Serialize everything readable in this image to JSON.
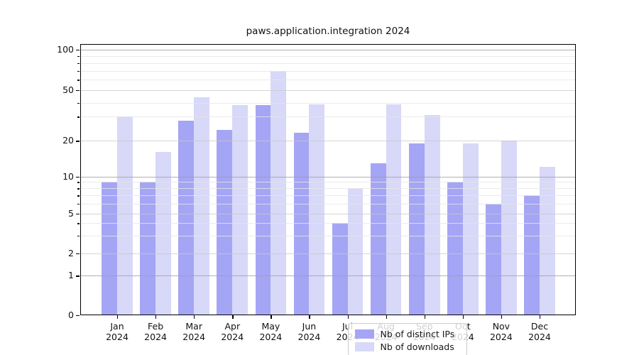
{
  "chart_data": {
    "type": "bar",
    "title": "paws.application.integration 2024",
    "categories": [
      "Jan",
      "Feb",
      "Mar",
      "Apr",
      "May",
      "Jun",
      "Jul",
      "Aug",
      "Sep",
      "Oct",
      "Nov",
      "Dec"
    ],
    "year_label": "2024",
    "series": [
      {
        "name": "Nb of distinct IPs",
        "color": "#a5a5f5",
        "values": [
          9,
          9,
          28,
          24,
          38,
          23,
          4,
          13,
          19,
          9,
          6,
          7
        ]
      },
      {
        "name": "Nb of downloads",
        "color": "#d8d8f8",
        "values": [
          30,
          16,
          44,
          38,
          70,
          39,
          8,
          39,
          31,
          19,
          20,
          12
        ]
      }
    ],
    "y_scale": "log",
    "ylim": [
      0,
      110
    ],
    "y_ticks_labeled": [
      100,
      50,
      20,
      10,
      5,
      2,
      1,
      0
    ],
    "y_gridlines_major": [
      1,
      10,
      100
    ],
    "y_gridlines_mid": [
      2,
      5,
      20,
      50
    ],
    "y_gridlines_minor": [
      3,
      4,
      6,
      7,
      8,
      9,
      30,
      40,
      60,
      70,
      80,
      90
    ],
    "grid": true,
    "legend_position": "bottom-center"
  }
}
